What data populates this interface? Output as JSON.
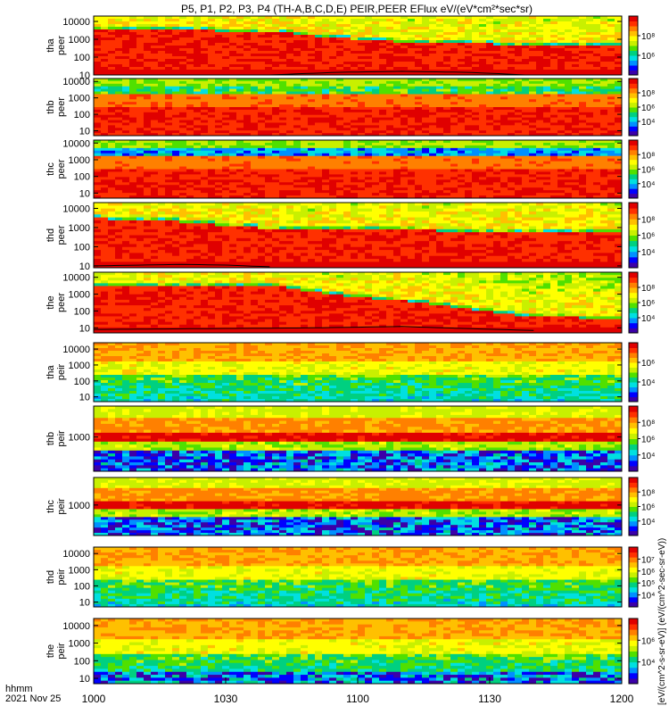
{
  "title": "P5, P1, P2, P3, P4 (TH-A,B,C,D,E) PEIR,PEER EFlux eV/(eV*cm²*sec*sr)",
  "colorbar_unit_label": "[eV/(cm^2-s-sr-eV)] (eV/(cm^2-sec-sr-eV))",
  "colors": {
    "scale": [
      "#3b00a8",
      "#0000ff",
      "#0090ff",
      "#00e0e0",
      "#00d080",
      "#50e000",
      "#c8f000",
      "#ffff00",
      "#ffc000",
      "#ff8000",
      "#ff3000",
      "#e00000"
    ],
    "trace": "#000000",
    "missing": "#ffffff"
  },
  "chart_data": {
    "type": "heatmap",
    "x_label_top": "hhmm",
    "x_label_bottom": "2021 Nov 25",
    "x_ticks": [
      "1000",
      "1030",
      "1100",
      "1130",
      "1200"
    ],
    "xlim": [
      "1000",
      "1200"
    ],
    "y_scale": "log",
    "panels": [
      {
        "probe": "tha",
        "species": "peer",
        "ylabel": "tha\npeer",
        "ylim": [
          10,
          20000
        ],
        "y_ticks": [
          "10",
          "100",
          "1000",
          "10000"
        ],
        "cb_ticks": [
          "10⁶",
          "10⁸"
        ],
        "cb_range": [
          5,
          9
        ],
        "pattern": "electron",
        "boundary": [
          [
            0,
            3500
          ],
          [
            40,
            2800
          ],
          [
            55,
            1200
          ],
          [
            75,
            600
          ],
          [
            100,
            500
          ],
          [
            120,
            450
          ]
        ],
        "trace": [
          [
            0,
            9
          ],
          [
            40,
            10
          ],
          [
            55,
            14
          ],
          [
            70,
            16
          ],
          [
            85,
            14
          ],
          [
            95,
            11
          ],
          [
            100,
            9
          ]
        ]
      },
      {
        "probe": "thb",
        "species": "peer",
        "ylabel": "thb\npeer",
        "ylim": [
          5,
          15000
        ],
        "y_ticks": [
          "10",
          "100",
          "1000",
          "10000"
        ],
        "cb_ticks": [
          "10⁴",
          "10⁶",
          "10⁸"
        ],
        "cb_range": [
          3,
          9
        ],
        "pattern": "electron_flat"
      },
      {
        "probe": "thc",
        "species": "peer",
        "ylabel": "thc\npeer",
        "ylim": [
          5,
          15000
        ],
        "y_ticks": [
          "10",
          "100",
          "1000",
          "10000"
        ],
        "cb_ticks": [
          "10⁴",
          "10⁶",
          "10⁸"
        ],
        "cb_range": [
          3,
          9
        ],
        "pattern": "electron_flat_noisy"
      },
      {
        "probe": "thd",
        "species": "peer",
        "ylabel": "thd\npeer",
        "ylim": [
          8,
          20000
        ],
        "y_ticks": [
          "10",
          "100",
          "1000",
          "10000"
        ],
        "cb_ticks": [
          "10⁴",
          "10⁶",
          "10⁸"
        ],
        "cb_range": [
          3,
          9
        ],
        "pattern": "electron",
        "boundary": [
          [
            0,
            3000
          ],
          [
            20,
            2000
          ],
          [
            30,
            1200
          ],
          [
            45,
            800
          ],
          [
            70,
            700
          ],
          [
            120,
            600
          ]
        ],
        "trace": [
          [
            0,
            10
          ],
          [
            20,
            12
          ],
          [
            30,
            11
          ],
          [
            40,
            9
          ]
        ]
      },
      {
        "probe": "the",
        "species": "peer",
        "ylabel": "the\npeer",
        "ylim": [
          5,
          20000
        ],
        "y_ticks": [
          "10",
          "100",
          "1000",
          "10000"
        ],
        "cb_ticks": [
          "10⁴",
          "10⁶",
          "10⁸"
        ],
        "cb_range": [
          3,
          9
        ],
        "pattern": "electron",
        "boundary": [
          [
            0,
            3500
          ],
          [
            42,
            2800
          ],
          [
            55,
            900
          ],
          [
            75,
            300
          ],
          [
            95,
            60
          ],
          [
            110,
            40
          ],
          [
            120,
            35
          ]
        ],
        "trace": [
          [
            0,
            8
          ],
          [
            50,
            10
          ],
          [
            70,
            12
          ],
          [
            85,
            9
          ],
          [
            100,
            7
          ]
        ]
      },
      {
        "probe": "tha",
        "species": "peir",
        "ylabel": "tha\npeir",
        "ylim": [
          5,
          25000
        ],
        "y_ticks": [
          "10",
          "100",
          "1000",
          "10000"
        ],
        "cb_ticks": [
          "10⁴",
          "10⁶"
        ],
        "cb_range": [
          3,
          7
        ],
        "pattern": "ion"
      },
      {
        "probe": "thb",
        "species": "peir",
        "ylabel": "thb\npeir",
        "ylim": [
          100,
          8000
        ],
        "y_ticks": [
          "1000"
        ],
        "cb_ticks": [
          "10⁴",
          "10⁶",
          "10⁸"
        ],
        "cb_range": [
          3,
          9
        ],
        "pattern": "ion_band"
      },
      {
        "probe": "thc",
        "species": "peir",
        "ylabel": "thc\npeir",
        "ylim": [
          100,
          8000
        ],
        "y_ticks": [
          "1000"
        ],
        "cb_ticks": [
          "10⁴",
          "10⁶",
          "10⁸"
        ],
        "cb_range": [
          3,
          9
        ],
        "pattern": "ion_band"
      },
      {
        "probe": "thd",
        "species": "peir",
        "ylabel": "thd\npeir",
        "ylim": [
          5,
          25000
        ],
        "y_ticks": [
          "10",
          "100",
          "1000",
          "10000"
        ],
        "cb_ticks": [
          "10⁴",
          "10⁵",
          "10⁶",
          "10⁷"
        ],
        "cb_range": [
          3,
          7
        ],
        "pattern": "ion"
      },
      {
        "probe": "the",
        "species": "peir",
        "ylabel": "the\npeir",
        "ylim": [
          5,
          25000
        ],
        "y_ticks": [
          "10",
          "100",
          "1000",
          "10000"
        ],
        "cb_ticks": [
          "10⁴",
          "10⁶"
        ],
        "cb_range": [
          3,
          7
        ],
        "pattern": "ion_noisy"
      }
    ]
  }
}
